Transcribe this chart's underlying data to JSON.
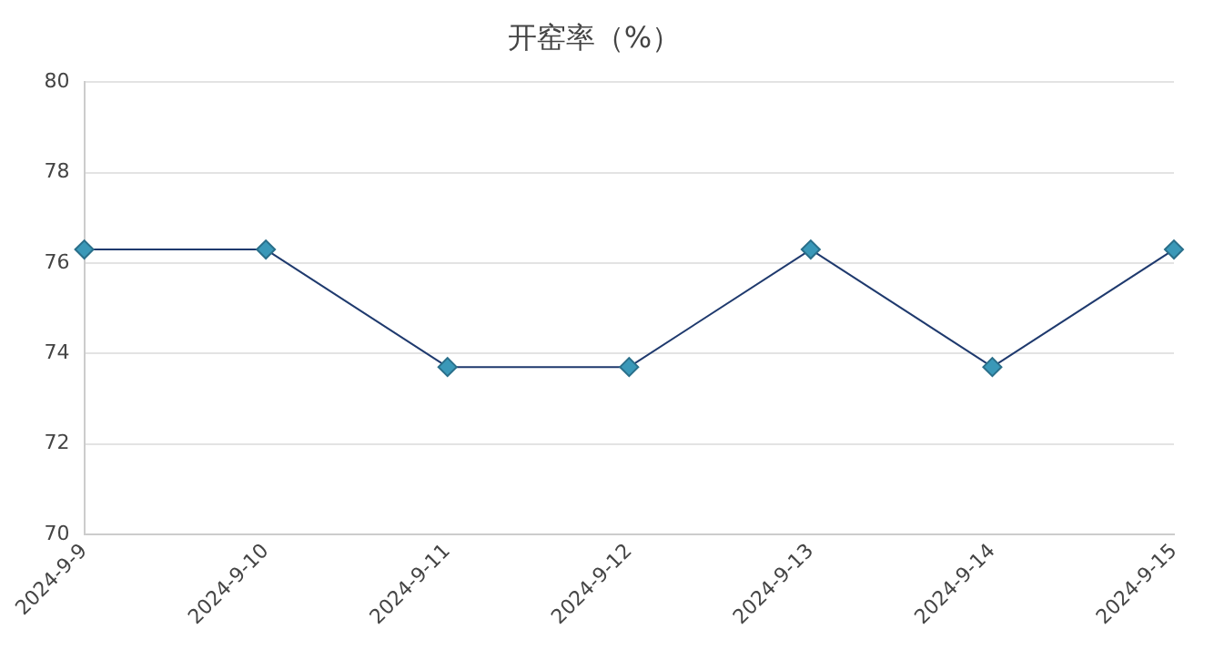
{
  "chart_data": {
    "type": "line",
    "title": "开窑率（%）",
    "categories": [
      "2024-9-9",
      "2024-9-10",
      "2024-9-11",
      "2024-9-12",
      "2024-9-13",
      "2024-9-14",
      "2024-9-15"
    ],
    "series": [
      {
        "color": "#1f3a6e",
        "values": [
          76.3,
          76.3,
          73.7,
          73.7,
          76.3,
          73.7,
          76.3
        ]
      }
    ],
    "ylim": [
      70,
      80
    ],
    "yticks": [
      70,
      72,
      74,
      76,
      78,
      80
    ],
    "grid": "y",
    "legend": false,
    "marker": "diamond",
    "line_style": "solid"
  }
}
